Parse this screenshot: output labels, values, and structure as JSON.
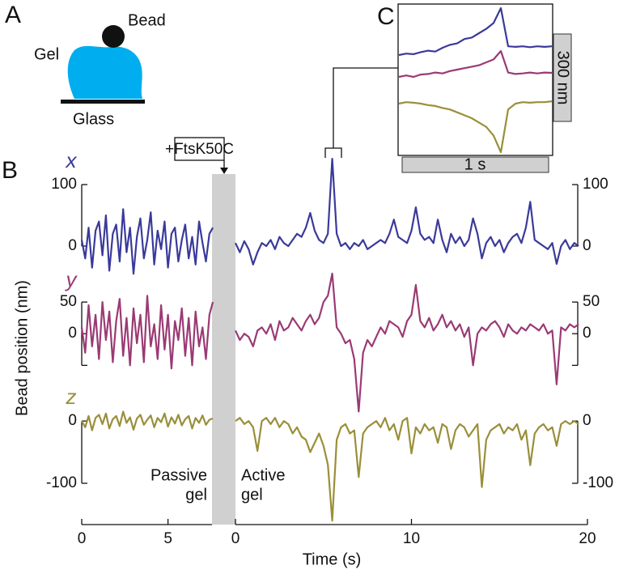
{
  "panel_labels": [
    "A",
    "B",
    "C"
  ],
  "schematic": {
    "bead": "Bead",
    "gel": "Gel",
    "glass": "Glass"
  },
  "chart_data": {
    "type": "line",
    "xlabel": "Time (s)",
    "ylabel": "Bead position (nm)",
    "annotation": "+FtsK50C",
    "traces": [
      {
        "name": "x",
        "color": "#3a3a9a",
        "ylim": [
          -50,
          150
        ],
        "yticks": [
          0,
          100
        ]
      },
      {
        "name": "y",
        "color": "#9a3a74",
        "ylim": [
          -125,
          100
        ],
        "yticks": [
          0,
          50
        ],
        "unlabeled_yticks": [
          -50
        ]
      },
      {
        "name": "z",
        "color": "#9a8f3a",
        "ylim": [
          -165,
          30
        ],
        "yticks": [
          0,
          -100
        ]
      }
    ],
    "segments": [
      {
        "label_lines": [
          "Passive",
          "gel"
        ],
        "xlim": [
          0,
          7.55
        ],
        "xticks": [
          0,
          5
        ],
        "x": [
          0,
          0.2,
          0.4,
          0.6,
          0.8,
          1,
          1.2,
          1.4,
          1.6,
          1.8,
          2,
          2.2,
          2.4,
          2.6,
          2.8,
          3,
          3.2,
          3.4,
          3.6,
          3.8,
          4,
          4.2,
          4.4,
          4.6,
          4.8,
          5,
          5.2,
          5.4,
          5.6,
          5.8,
          6,
          6.2,
          6.4,
          6.6,
          6.8,
          7,
          7.2,
          7.4,
          7.6
        ],
        "values": [
          [
            10,
            -20,
            30,
            -35,
            25,
            40,
            -15,
            50,
            -40,
            20,
            35,
            -25,
            60,
            -10,
            30,
            -45,
            15,
            45,
            -20,
            10,
            55,
            -30,
            25,
            -5,
            40,
            -35,
            20,
            30,
            -25,
            10,
            35,
            -20,
            15,
            -30,
            40,
            5,
            -25,
            20,
            30
          ],
          [
            10,
            -30,
            45,
            -20,
            30,
            -40,
            50,
            -10,
            35,
            -45,
            20,
            55,
            -35,
            25,
            -50,
            40,
            -15,
            30,
            -45,
            60,
            -20,
            15,
            -40,
            45,
            -25,
            30,
            -55,
            20,
            -10,
            40,
            -35,
            25,
            -50,
            35,
            -20,
            10,
            -40,
            30,
            50
          ],
          [
            0,
            -10,
            8,
            -15,
            5,
            10,
            -5,
            12,
            -12,
            3,
            8,
            -8,
            15,
            -3,
            6,
            -14,
            4,
            10,
            -6,
            2,
            9,
            -10,
            5,
            -2,
            12,
            -9,
            6,
            -4,
            10,
            -7,
            3,
            8,
            -12,
            5,
            -3,
            9,
            -6,
            2,
            4
          ]
        ]
      },
      {
        "label_lines": [
          "Active",
          "gel"
        ],
        "xlim": [
          0,
          20
        ],
        "xticks": [
          0,
          10,
          20
        ],
        "x": [
          0,
          0.25,
          0.5,
          0.75,
          1,
          1.25,
          1.5,
          1.75,
          2,
          2.25,
          2.5,
          2.75,
          3,
          3.25,
          3.5,
          3.75,
          4,
          4.25,
          4.5,
          4.75,
          5,
          5.25,
          5.5,
          5.75,
          6,
          6.25,
          6.5,
          6.75,
          7,
          7.25,
          7.5,
          7.75,
          8,
          8.25,
          8.5,
          8.75,
          9,
          9.25,
          9.5,
          9.75,
          10,
          10.25,
          10.5,
          10.75,
          11,
          11.25,
          11.5,
          11.75,
          12,
          12.25,
          12.5,
          12.75,
          13,
          13.25,
          13.5,
          13.75,
          14,
          14.25,
          14.5,
          14.75,
          15,
          15.25,
          15.5,
          15.75,
          16,
          16.25,
          16.5,
          16.75,
          17,
          17.25,
          17.5,
          17.75,
          18,
          18.25,
          18.5,
          18.75,
          19,
          19.25,
          19.5
        ],
        "values": [
          [
            5,
            -10,
            8,
            -5,
            -30,
            -10,
            5,
            0,
            10,
            -5,
            15,
            5,
            0,
            10,
            20,
            15,
            30,
            54,
            25,
            10,
            5,
            20,
            142,
            20,
            0,
            5,
            -5,
            5,
            0,
            10,
            -5,
            0,
            5,
            10,
            5,
            20,
            43,
            15,
            10,
            5,
            25,
            63,
            20,
            10,
            15,
            5,
            43,
            10,
            -10,
            20,
            5,
            15,
            0,
            10,
            45,
            20,
            -20,
            5,
            15,
            0,
            10,
            -10,
            5,
            15,
            20,
            5,
            30,
            72,
            10,
            5,
            0,
            -5,
            5,
            -29,
            0,
            10,
            -5,
            5,
            0
          ],
          [
            5,
            -10,
            0,
            -5,
            -20,
            5,
            10,
            0,
            15,
            -10,
            20,
            5,
            10,
            25,
            15,
            5,
            20,
            30,
            15,
            25,
            50,
            60,
            95,
            10,
            0,
            -15,
            -10,
            -40,
            -123,
            -30,
            -10,
            -20,
            -5,
            10,
            0,
            20,
            15,
            10,
            -5,
            20,
            30,
            77,
            20,
            10,
            25,
            5,
            15,
            30,
            10,
            20,
            5,
            15,
            -5,
            10,
            -50,
            0,
            10,
            5,
            15,
            20,
            10,
            -5,
            15,
            5,
            0,
            10,
            5,
            15,
            10,
            5,
            15,
            0,
            5,
            -80,
            10,
            5,
            15,
            10,
            15
          ],
          [
            0,
            5,
            -5,
            0,
            -10,
            -48,
            0,
            5,
            -5,
            5,
            -10,
            0,
            -5,
            -20,
            -10,
            -25,
            -30,
            -50,
            -35,
            -20,
            -40,
            -70,
            -160,
            -30,
            -10,
            -5,
            -20,
            -15,
            -90,
            -20,
            -10,
            -5,
            0,
            -10,
            5,
            -15,
            -5,
            -30,
            0,
            5,
            -52,
            -10,
            -20,
            -5,
            -15,
            -10,
            -35,
            -5,
            -10,
            -45,
            -15,
            -5,
            -10,
            -25,
            -15,
            -5,
            -106,
            -30,
            -15,
            -10,
            -5,
            -20,
            -10,
            -15,
            -5,
            -30,
            -15,
            -71,
            -20,
            -10,
            -5,
            -15,
            -10,
            -40,
            -5,
            0,
            -5,
            0,
            -5
          ]
        ]
      }
    ],
    "inset": {
      "xlabel": "1 s",
      "ylabel": "300 nm",
      "x": [
        0,
        0.05,
        0.1,
        0.15,
        0.2,
        0.25,
        0.3,
        0.35,
        0.4,
        0.45,
        0.5,
        0.55,
        0.6,
        0.65,
        0.7,
        0.75,
        0.8,
        0.85,
        0.9,
        0.95,
        1,
        1.05
      ],
      "values": [
        [
          0,
          5,
          3,
          10,
          15,
          12,
          25,
          35,
          40,
          55,
          60,
          75,
          90,
          110,
          161,
          30,
          28,
          30,
          27,
          30,
          28,
          30
        ],
        [
          0,
          5,
          0,
          8,
          10,
          15,
          12,
          20,
          25,
          30,
          35,
          40,
          50,
          60,
          89,
          15,
          10,
          12,
          15,
          12,
          15,
          14
        ],
        [
          0,
          5,
          3,
          0,
          -5,
          -8,
          -15,
          -20,
          -30,
          -40,
          -50,
          -65,
          -80,
          -110,
          -167,
          -20,
          0,
          5,
          3,
          5,
          5,
          8
        ]
      ]
    }
  }
}
